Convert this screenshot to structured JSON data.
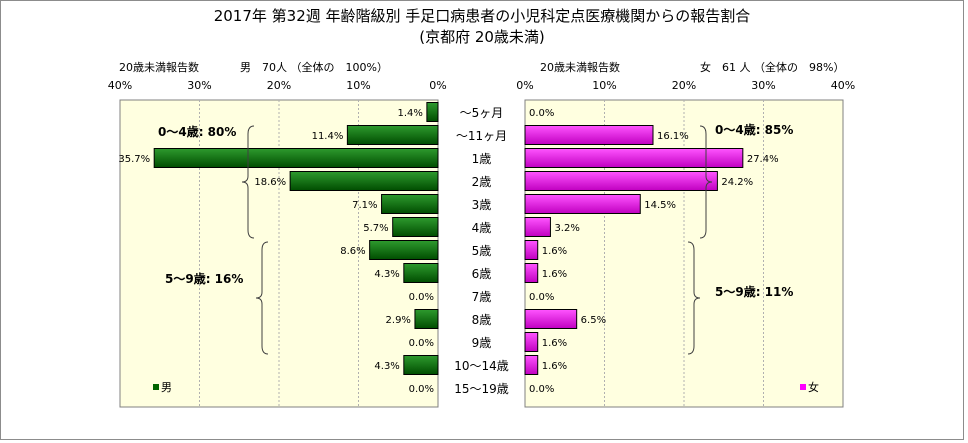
{
  "title": "2017年 第32週 年齢階級別 手足口病患者の小児科定点医療機関からの報告割合",
  "subtitle": "(京都府 20歳未満)",
  "chart_data": [
    {
      "type": "bar",
      "orientation": "horizontal",
      "direction": "right-to-left",
      "header_left": "20歳未満報告数",
      "header_right": "男　70人 （全体の　100%）",
      "x_ticks": [
        "40%",
        "30%",
        "20%",
        "10%",
        "0%"
      ],
      "xlim": [
        0,
        40
      ],
      "categories": [
        "～5ヶ月",
        "～11ヶ月",
        "1歳",
        "2歳",
        "3歳",
        "4歳",
        "5歳",
        "6歳",
        "7歳",
        "8歳",
        "9歳",
        "10～14歳",
        "15～19歳"
      ],
      "series": [
        {
          "name": "男",
          "color": "#006400",
          "values": [
            1.4,
            11.4,
            35.7,
            18.6,
            7.1,
            5.7,
            8.6,
            4.3,
            0.0,
            2.9,
            0.0,
            4.3,
            0.0
          ],
          "labels": [
            "1.4%",
            "11.4%",
            "35.7%",
            "18.6%",
            "7.1%",
            "5.7%",
            "8.6%",
            "4.3%",
            "0.0%",
            "2.9%",
            "0.0%",
            "4.3%",
            "0.0%"
          ]
        }
      ],
      "bracket_labels": [
        "0～4歳: 80%",
        "5～9歳: 16%"
      ],
      "legend": "男",
      "plot_background": "#ffffe0"
    },
    {
      "type": "bar",
      "orientation": "horizontal",
      "direction": "left-to-right",
      "header_left": "20歳未満報告数",
      "header_right": "女　61 人 （全体の　98%）",
      "x_ticks": [
        "0%",
        "10%",
        "20%",
        "30%",
        "40%"
      ],
      "xlim": [
        0,
        40
      ],
      "categories": [
        "～5ヶ月",
        "～11ヶ月",
        "1歳",
        "2歳",
        "3歳",
        "4歳",
        "5歳",
        "6歳",
        "7歳",
        "8歳",
        "9歳",
        "10～14歳",
        "15～19歳"
      ],
      "series": [
        {
          "name": "女",
          "color": "#ff00ff",
          "values": [
            0.0,
            16.1,
            27.4,
            24.2,
            14.5,
            3.2,
            1.6,
            1.6,
            0.0,
            6.5,
            1.6,
            1.6,
            0.0
          ],
          "labels": [
            "0.0%",
            "16.1%",
            "27.4%",
            "24.2%",
            "14.5%",
            "3.2%",
            "1.6%",
            "1.6%",
            "0.0%",
            "6.5%",
            "1.6%",
            "1.6%",
            "0.0%"
          ]
        }
      ],
      "bracket_labels": [
        "0～4歳: 85%",
        "5～9歳: 11%"
      ],
      "legend": "女",
      "plot_background": "#ffffe0"
    }
  ]
}
